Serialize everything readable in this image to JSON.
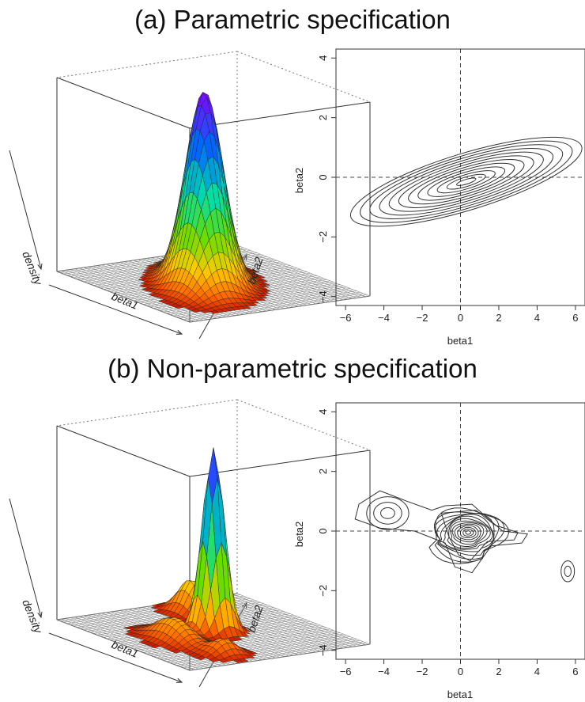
{
  "titles": {
    "a": "(a) Parametric specification",
    "b": "(b) Non-parametric specification"
  },
  "chart_data": [
    {
      "type": "surface",
      "panel": "a-surface",
      "axis_labels": {
        "x": "beta1",
        "y": "beta2",
        "z": "density"
      },
      "peak": {
        "beta1": 0,
        "beta2": 0
      },
      "colormap": [
        "#c00000",
        "#ff6600",
        "#ffcc00",
        "#66dd00",
        "#00ddaa",
        "#0066ff",
        "#8800ff"
      ]
    },
    {
      "type": "contour",
      "panel": "a-contour",
      "xlabel": "beta1",
      "ylabel": "beta2",
      "xlim": [
        -6.5,
        6.5
      ],
      "ylim": [
        -4.3,
        4.3
      ],
      "xticks": [
        "−6",
        "−4",
        "−2",
        "0",
        "2",
        "4",
        "6"
      ],
      "yticks": [
        "−4",
        "−2",
        "0",
        "2",
        "4"
      ],
      "reference_lines": {
        "x": 0,
        "y": 0
      },
      "centers": [
        {
          "x": 0.3,
          "y": -0.15,
          "levels": 12,
          "rx_max": 6.3,
          "ry_max": 0.95,
          "rotation_deg": -17
        }
      ]
    },
    {
      "type": "surface",
      "panel": "b-surface",
      "axis_labels": {
        "x": "beta1",
        "y": "beta2",
        "z": "density"
      },
      "peak": {
        "beta1": 0,
        "beta2": 0
      },
      "colormap": [
        "#c00000",
        "#ff6600",
        "#ffcc00",
        "#66dd00",
        "#00ddaa",
        "#0066ff",
        "#8800ff"
      ]
    },
    {
      "type": "contour",
      "panel": "b-contour",
      "xlabel": "beta1",
      "ylabel": "beta2",
      "xlim": [
        -6.5,
        6.5
      ],
      "ylim": [
        -4.3,
        4.3
      ],
      "xticks": [
        "−6",
        "−4",
        "−2",
        "0",
        "2",
        "4",
        "6"
      ],
      "yticks": [
        "−4",
        "−2",
        "0",
        "2",
        "4"
      ],
      "reference_lines": {
        "x": 0,
        "y": 0
      },
      "modes": [
        {
          "x": 0.4,
          "y": -0.05,
          "levels": 14,
          "rx_max": 1.9,
          "ry_max": 0.8
        },
        {
          "x": -3.8,
          "y": 0.6,
          "levels": 3,
          "rx_max": 1.1,
          "ry_max": 0.55
        },
        {
          "x": 5.6,
          "y": -1.35,
          "levels": 2,
          "rx_max": 0.35,
          "ry_max": 0.35
        }
      ]
    }
  ]
}
